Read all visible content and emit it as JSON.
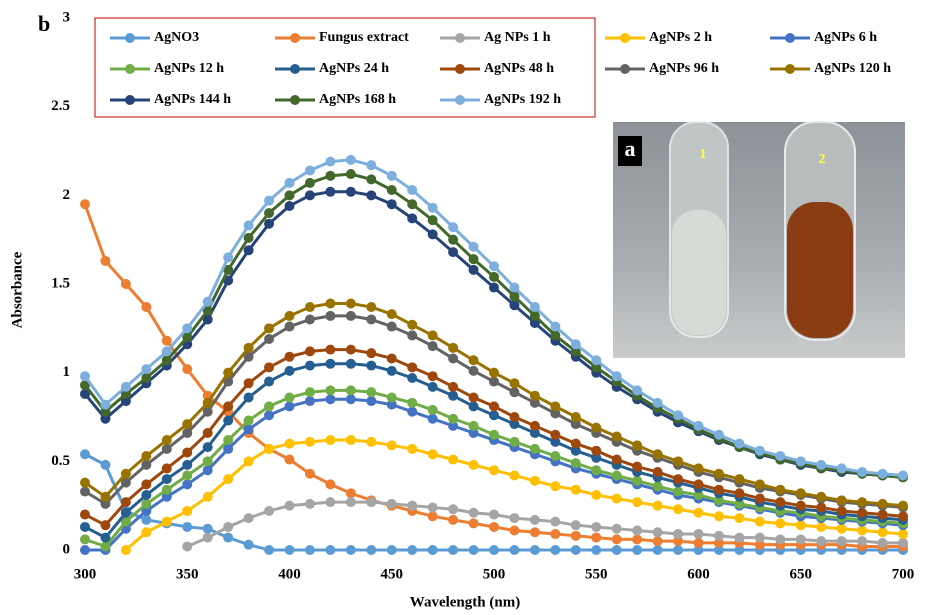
{
  "chart_data": {
    "type": "line",
    "panel_label": "b",
    "inset_labels": [
      "a",
      "1",
      "2"
    ],
    "x_label": "Wavelength (nm)",
    "y_label": "Absorbance",
    "xlim": [
      300,
      700
    ],
    "xticks": [
      300,
      350,
      400,
      450,
      500,
      550,
      600,
      650,
      700
    ],
    "ylim": [
      0,
      3
    ],
    "yticks": [
      0,
      0.5,
      1,
      1.5,
      2,
      2.5,
      3
    ],
    "grid": false,
    "legend": "top",
    "x": [
      300,
      310,
      320,
      330,
      340,
      350,
      360,
      370,
      380,
      390,
      400,
      410,
      420,
      430,
      440,
      450,
      460,
      470,
      480,
      490,
      500,
      510,
      520,
      530,
      540,
      550,
      560,
      570,
      580,
      590,
      600,
      610,
      620,
      630,
      640,
      650,
      660,
      670,
      680,
      690,
      700
    ],
    "series": [
      {
        "name": "AgNO3",
        "color": "#5b9bd5",
        "values": [
          0.54,
          0.48,
          0.22,
          0.17,
          0.15,
          0.13,
          0.12,
          0.07,
          0.03,
          0,
          0,
          0,
          0,
          0,
          0,
          0,
          0,
          0,
          0,
          0,
          0,
          0,
          0,
          0,
          0,
          0,
          0,
          0,
          0,
          0,
          0,
          0,
          0,
          0,
          0,
          0,
          0,
          0,
          0,
          0,
          0
        ]
      },
      {
        "name": "Fungus extract",
        "color": "#ed7d31",
        "values": [
          1.95,
          1.63,
          1.5,
          1.37,
          1.18,
          1.02,
          0.87,
          0.78,
          0.66,
          0.57,
          0.51,
          0.43,
          0.37,
          0.32,
          0.28,
          0.25,
          0.22,
          0.19,
          0.17,
          0.15,
          0.13,
          0.11,
          0.1,
          0.09,
          0.08,
          0.07,
          0.06,
          0.06,
          0.05,
          0.05,
          0.04,
          0.04,
          0.04,
          0.03,
          0.03,
          0.03,
          0.03,
          0.03,
          0.02,
          0.02,
          0.02
        ]
      },
      {
        "name": "Ag NPs 1 h",
        "color": "#a5a5a5",
        "values": [
          null,
          null,
          null,
          null,
          null,
          0.02,
          0.07,
          0.13,
          0.18,
          0.22,
          0.25,
          0.26,
          0.27,
          0.27,
          0.27,
          0.26,
          0.25,
          0.24,
          0.23,
          0.21,
          0.2,
          0.18,
          0.17,
          0.16,
          0.14,
          0.13,
          0.12,
          0.11,
          0.1,
          0.09,
          0.09,
          0.08,
          0.07,
          0.07,
          0.06,
          0.06,
          0.05,
          0.05,
          0.05,
          0.04,
          0.04
        ]
      },
      {
        "name": "AgNPs 2 h",
        "color": "#ffc000",
        "values": [
          null,
          null,
          0,
          0.1,
          0.16,
          0.22,
          0.3,
          0.4,
          0.5,
          0.57,
          0.6,
          0.61,
          0.62,
          0.62,
          0.61,
          0.59,
          0.57,
          0.54,
          0.51,
          0.48,
          0.45,
          0.42,
          0.39,
          0.36,
          0.34,
          0.31,
          0.29,
          0.27,
          0.25,
          0.23,
          0.21,
          0.19,
          0.18,
          0.16,
          0.15,
          0.14,
          0.13,
          0.12,
          0.11,
          0.1,
          0.09
        ]
      },
      {
        "name": "AgNPs 6 h",
        "color": "#4472c4",
        "values": [
          0,
          0,
          0.12,
          0.22,
          0.3,
          0.37,
          0.45,
          0.57,
          0.68,
          0.76,
          0.81,
          0.84,
          0.85,
          0.85,
          0.84,
          0.82,
          0.78,
          0.74,
          0.7,
          0.66,
          0.62,
          0.58,
          0.54,
          0.5,
          0.46,
          0.43,
          0.4,
          0.37,
          0.34,
          0.31,
          0.29,
          0.27,
          0.25,
          0.23,
          0.21,
          0.19,
          0.18,
          0.17,
          0.16,
          0.15,
          0.14
        ]
      },
      {
        "name": "AgNPs 12 h",
        "color": "#70ad47",
        "values": [
          0.06,
          0.02,
          0.16,
          0.26,
          0.34,
          0.42,
          0.5,
          0.62,
          0.73,
          0.81,
          0.86,
          0.89,
          0.9,
          0.9,
          0.89,
          0.86,
          0.83,
          0.79,
          0.74,
          0.7,
          0.65,
          0.61,
          0.57,
          0.53,
          0.49,
          0.45,
          0.42,
          0.39,
          0.36,
          0.33,
          0.31,
          0.28,
          0.26,
          0.24,
          0.22,
          0.21,
          0.19,
          0.18,
          0.17,
          0.16,
          0.15
        ]
      },
      {
        "name": "AgNPs 24 h",
        "color": "#255e91",
        "values": [
          0.13,
          0.07,
          0.21,
          0.31,
          0.4,
          0.48,
          0.58,
          0.73,
          0.86,
          0.95,
          1.01,
          1.04,
          1.05,
          1.05,
          1.04,
          1.01,
          0.97,
          0.92,
          0.87,
          0.81,
          0.76,
          0.71,
          0.66,
          0.61,
          0.56,
          0.52,
          0.48,
          0.44,
          0.41,
          0.38,
          0.35,
          0.32,
          0.3,
          0.27,
          0.25,
          0.23,
          0.22,
          0.2,
          0.19,
          0.18,
          0.17
        ]
      },
      {
        "name": "AgNPs 48 h",
        "color": "#9e480e",
        "values": [
          0.2,
          0.14,
          0.27,
          0.37,
          0.46,
          0.55,
          0.66,
          0.81,
          0.94,
          1.03,
          1.09,
          1.12,
          1.13,
          1.13,
          1.11,
          1.08,
          1.03,
          0.98,
          0.92,
          0.86,
          0.81,
          0.75,
          0.7,
          0.65,
          0.6,
          0.56,
          0.51,
          0.47,
          0.44,
          0.4,
          0.37,
          0.34,
          0.32,
          0.29,
          0.27,
          0.25,
          0.24,
          0.22,
          0.21,
          0.2,
          0.19
        ]
      },
      {
        "name": "AgNPs 96 h",
        "color": "#636363",
        "values": [
          0.33,
          0.26,
          0.38,
          0.48,
          0.57,
          0.66,
          0.78,
          0.95,
          1.09,
          1.19,
          1.26,
          1.3,
          1.32,
          1.32,
          1.3,
          1.26,
          1.21,
          1.15,
          1.08,
          1.01,
          0.95,
          0.89,
          0.83,
          0.77,
          0.71,
          0.66,
          0.61,
          0.56,
          0.52,
          0.48,
          0.44,
          0.41,
          0.38,
          0.35,
          0.33,
          0.31,
          0.29,
          0.27,
          0.26,
          0.25,
          0.24
        ]
      },
      {
        "name": "AgNPs 120 h",
        "color": "#997300",
        "values": [
          0.38,
          0.3,
          0.43,
          0.53,
          0.62,
          0.71,
          0.83,
          1,
          1.14,
          1.25,
          1.32,
          1.37,
          1.39,
          1.39,
          1.37,
          1.33,
          1.27,
          1.21,
          1.14,
          1.07,
          1,
          0.94,
          0.87,
          0.81,
          0.75,
          0.69,
          0.64,
          0.59,
          0.54,
          0.5,
          0.46,
          0.43,
          0.4,
          0.37,
          0.34,
          0.32,
          0.3,
          0.28,
          0.27,
          0.26,
          0.25
        ]
      },
      {
        "name": "AgNPs 144 h",
        "color": "#264478",
        "values": [
          0.88,
          0.74,
          0.84,
          0.94,
          1.04,
          1.16,
          1.3,
          1.52,
          1.69,
          1.84,
          1.94,
          2,
          2.02,
          2.02,
          2,
          1.95,
          1.87,
          1.78,
          1.68,
          1.58,
          1.48,
          1.38,
          1.28,
          1.18,
          1.09,
          1,
          0.92,
          0.85,
          0.78,
          0.72,
          0.67,
          0.62,
          0.58,
          0.54,
          0.51,
          0.48,
          0.46,
          0.44,
          0.43,
          0.42,
          0.41
        ]
      },
      {
        "name": "AgNPs 168 h",
        "color": "#43682b",
        "values": [
          0.93,
          0.78,
          0.88,
          0.97,
          1.07,
          1.2,
          1.35,
          1.58,
          1.76,
          1.9,
          2,
          2.07,
          2.11,
          2.12,
          2.09,
          2.03,
          1.95,
          1.86,
          1.75,
          1.64,
          1.54,
          1.43,
          1.32,
          1.21,
          1.12,
          1.03,
          0.95,
          0.87,
          0.8,
          0.74,
          0.68,
          0.63,
          0.58,
          0.55,
          0.51,
          0.49,
          0.46,
          0.45,
          0.43,
          0.42,
          0.41
        ]
      },
      {
        "name": "AgNPs 192 h",
        "color": "#7cafdd",
        "values": [
          0.98,
          0.82,
          0.92,
          1.02,
          1.12,
          1.25,
          1.4,
          1.65,
          1.83,
          1.97,
          2.07,
          2.14,
          2.19,
          2.2,
          2.17,
          2.11,
          2.03,
          1.93,
          1.82,
          1.71,
          1.6,
          1.48,
          1.37,
          1.26,
          1.16,
          1.07,
          0.98,
          0.9,
          0.83,
          0.76,
          0.7,
          0.65,
          0.6,
          0.56,
          0.53,
          0.5,
          0.48,
          0.46,
          0.44,
          0.43,
          0.42
        ]
      }
    ]
  }
}
